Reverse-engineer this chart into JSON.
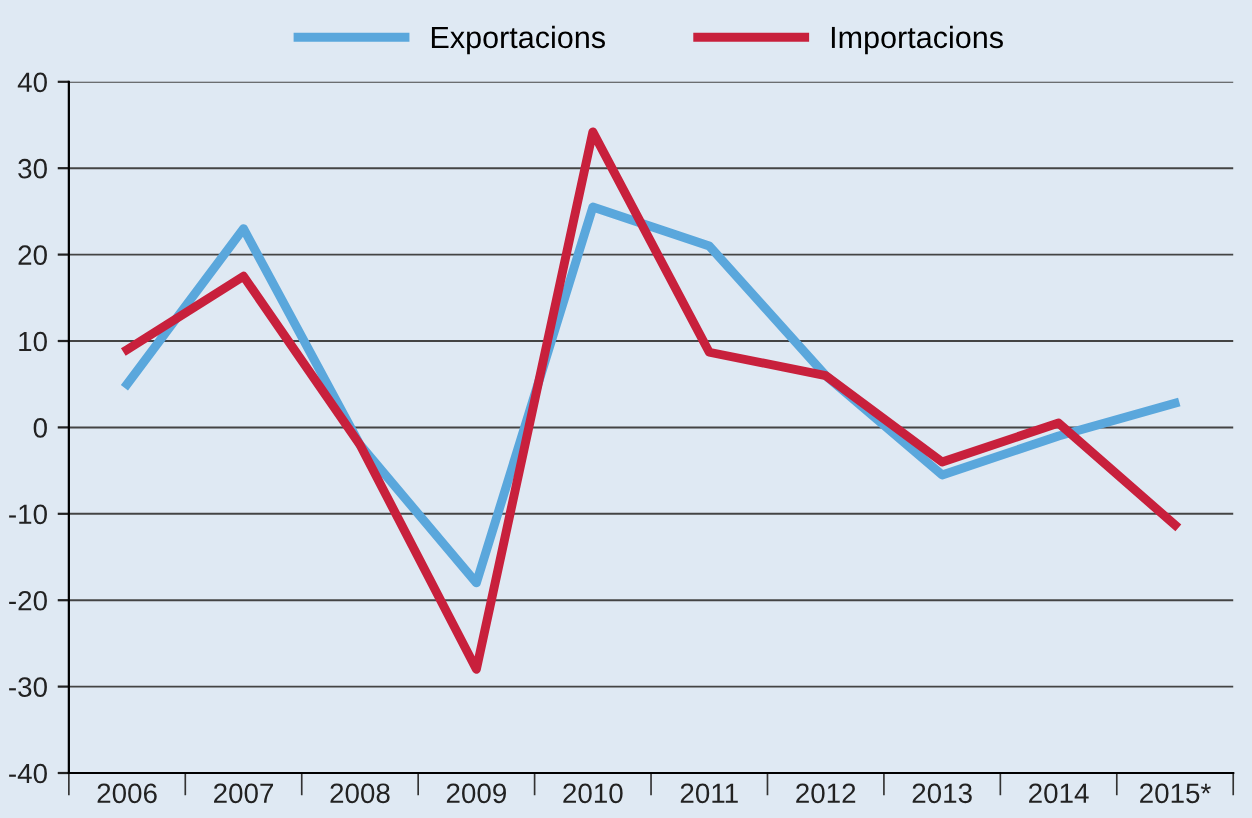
{
  "chart_data": {
    "type": "line",
    "categories": [
      "2006",
      "2007",
      "2008",
      "2009",
      "2010",
      "2011",
      "2012",
      "2013",
      "2014",
      "2015*"
    ],
    "series": [
      {
        "name": "Exportacions",
        "color": "#5aa7dc",
        "values": [
          5,
          23,
          -2,
          -18,
          25.5,
          21,
          6,
          -5.5,
          -1,
          2.8
        ]
      },
      {
        "name": "Importacions",
        "color": "#c8203c",
        "values": [
          9,
          17.5,
          -2,
          -28,
          34.2,
          8.7,
          6,
          -4,
          0.5,
          -11.3
        ]
      }
    ],
    "ylim": [
      -40,
      40
    ],
    "yticks": [
      -40,
      -30,
      -20,
      -10,
      0,
      10,
      20,
      30,
      40
    ],
    "grid": "y",
    "legend": "top",
    "marker": "none",
    "line_style": "solid"
  }
}
